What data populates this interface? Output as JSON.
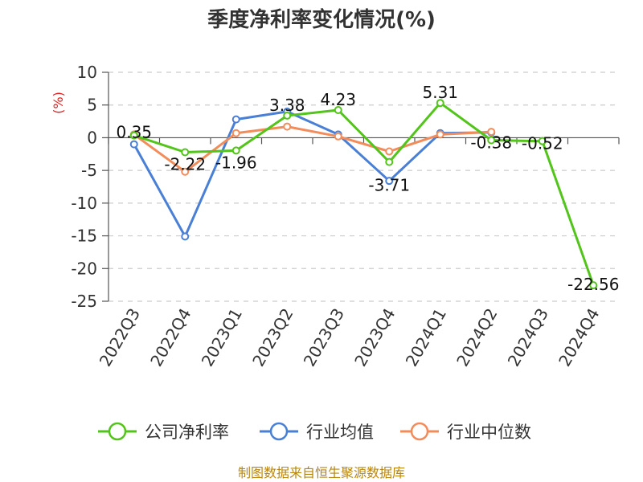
{
  "chart_data": {
    "type": "line",
    "title": "季度净利率变化情况(%)",
    "ylabel": "(%)",
    "categories": [
      "2022Q3",
      "2022Q4",
      "2023Q1",
      "2023Q2",
      "2023Q3",
      "2023Q4",
      "2024Q1",
      "2024Q2",
      "2024Q3",
      "2024Q4"
    ],
    "ylim": [
      -25,
      10
    ],
    "yticks": [
      10,
      5,
      0,
      -5,
      -10,
      -15,
      -20,
      -25
    ],
    "grid": true,
    "legend_position": "bottom",
    "series": [
      {
        "name": "公司净利率",
        "color": "#52c41a",
        "values": [
          0.35,
          -2.22,
          -1.96,
          3.38,
          4.23,
          -3.71,
          5.31,
          -0.38,
          -0.52,
          -22.56
        ],
        "labels": [
          "0.35",
          "-2.22",
          "-1.96",
          "3.38",
          "4.23",
          "-3.71",
          "5.31",
          "-0.38",
          "-0.52",
          "-22.56"
        ]
      },
      {
        "name": "行业均值",
        "color": "#4a7fd6",
        "values": [
          -1.0,
          -15.1,
          2.8,
          4.0,
          0.5,
          -6.6,
          0.7,
          0.8,
          null,
          null
        ]
      },
      {
        "name": "行业中位数",
        "color": "#f28c5a",
        "values": [
          0.5,
          -5.2,
          0.7,
          1.7,
          0.2,
          -2.1,
          0.5,
          0.9,
          null,
          null
        ]
      }
    ]
  },
  "source": "制图数据来自恒生聚源数据库"
}
